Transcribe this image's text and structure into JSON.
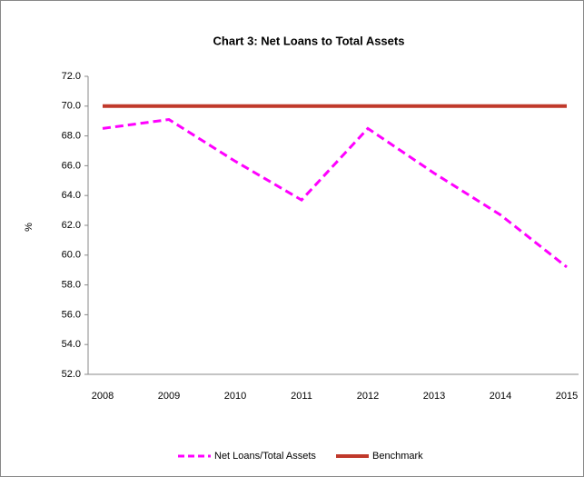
{
  "chart_data": {
    "type": "line",
    "title": "Chart 3: Net Loans to Total Assets",
    "ylabel": "%",
    "categories": [
      "2008",
      "2009",
      "2010",
      "2011",
      "2012",
      "2013",
      "2014",
      "2015"
    ],
    "series": [
      {
        "name": "Net Loans/Total Assets",
        "color": "#ff00ff",
        "dashed": true,
        "values": [
          68.5,
          69.1,
          66.3,
          63.7,
          68.5,
          65.5,
          62.7,
          59.2
        ]
      },
      {
        "name": "Benchmark",
        "color": "#c0392b",
        "dashed": false,
        "values": [
          70,
          70,
          70,
          70,
          70,
          70,
          70,
          70
        ]
      }
    ],
    "ylim": [
      52,
      72
    ],
    "yticks": [
      {
        "value": 52,
        "label": "52.0"
      },
      {
        "value": 54,
        "label": "54.0"
      },
      {
        "value": 56,
        "label": "56.0"
      },
      {
        "value": 58,
        "label": "58.0"
      },
      {
        "value": 60,
        "label": "60.0"
      },
      {
        "value": 62,
        "label": "62.0"
      },
      {
        "value": 64,
        "label": "64.0"
      },
      {
        "value": 66,
        "label": "66.0"
      },
      {
        "value": 68,
        "label": "68.0"
      },
      {
        "value": 70,
        "label": "70.0"
      },
      {
        "value": 72,
        "label": "72.0"
      }
    ],
    "legend": "bottom"
  }
}
